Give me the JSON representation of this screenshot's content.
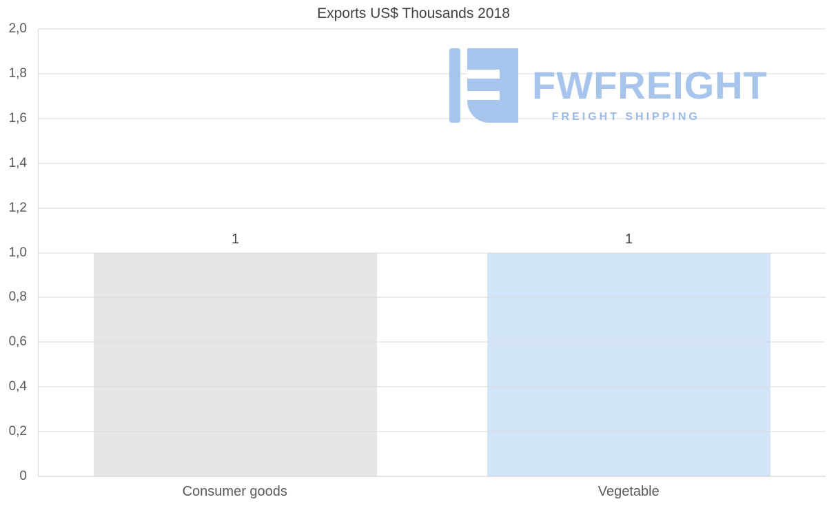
{
  "chart_data": {
    "type": "bar",
    "title": "Exports US$ Thousands 2018",
    "categories": [
      "Consumer goods",
      "Vegetable"
    ],
    "values": [
      1,
      1
    ],
    "data_labels": [
      "1",
      "1"
    ],
    "bar_colors": [
      "#e6e6e6",
      "#d2e4f8"
    ],
    "ylim": [
      0,
      2
    ],
    "ytick_step": 0.2,
    "ytick_labels": [
      "0",
      "0,2",
      "0,4",
      "0,6",
      "0,8",
      "1,0",
      "1,2",
      "1,4",
      "1,6",
      "1,8",
      "2,0"
    ],
    "grid": true,
    "legend": "none",
    "decimal_separator": ","
  },
  "logo": {
    "name": "FWFREIGHT",
    "subtitle": "FREIGHT SHIPPING",
    "color": "#a6c4ec",
    "subtitle_color": "#9bb8e6"
  },
  "colors": {
    "gridline": "#d9d9d9",
    "title_text": "#404040",
    "axis_text": "#595959",
    "background": "#ffffff"
  }
}
